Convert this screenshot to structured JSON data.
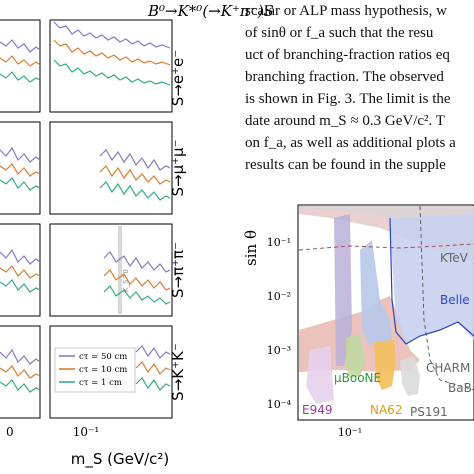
{
  "left_figure": {
    "title": "B⁰→K*⁰(→K⁺π⁻)S",
    "row_labels": [
      "S→e⁺e⁻",
      "S→μ⁺μ⁻",
      "S→π⁺π⁻",
      "S→K⁺K⁻"
    ],
    "x_axis_label": "m_S (GeV/c²)",
    "x_tick_left_fragment": "0",
    "x_tick_right": "10⁻¹",
    "annotation_ks": "K_S^0",
    "legend": {
      "entries": [
        {
          "label": "cτ = 50 cm",
          "color": "#8878c8"
        },
        {
          "label": "cτ = 10 cm",
          "color": "#e07d2a"
        },
        {
          "label": "cτ = 1 cm",
          "color": "#2fae8a"
        }
      ]
    }
  },
  "paragraph_lines": [
    "scalar or ALP mass hypothesis, w",
    "of sinθ or f_a such that the resu",
    "uct of branching-fraction ratios eq",
    "branching fraction. The observed",
    "is shown in Fig. 3. The limit is the",
    "date around m_S ≈ 0.3 GeV/c². T",
    "on f_a, as well as additional plots a",
    "results can be found in the supple"
  ],
  "right_figure": {
    "y_axis_label": "sin θ",
    "y_ticks": [
      "10⁻¹",
      "10⁻²",
      "10⁻³",
      "10⁻⁴"
    ],
    "x_ticks": [
      "10⁻¹"
    ],
    "region_labels": [
      {
        "text": "KTeV",
        "color": "#666666"
      },
      {
        "text": "Belle I",
        "color": "#2a44c8"
      },
      {
        "text": "μBooNE",
        "color": "#2c9a3a"
      },
      {
        "text": "E949",
        "color": "#9a3aa8"
      },
      {
        "text": "NA62",
        "color": "#e09a10"
      },
      {
        "text": "CHARM",
        "color": "#666666"
      },
      {
        "text": "BaB",
        "color": "#666666"
      },
      {
        "text": "PS191",
        "color": "#666666"
      }
    ]
  }
}
